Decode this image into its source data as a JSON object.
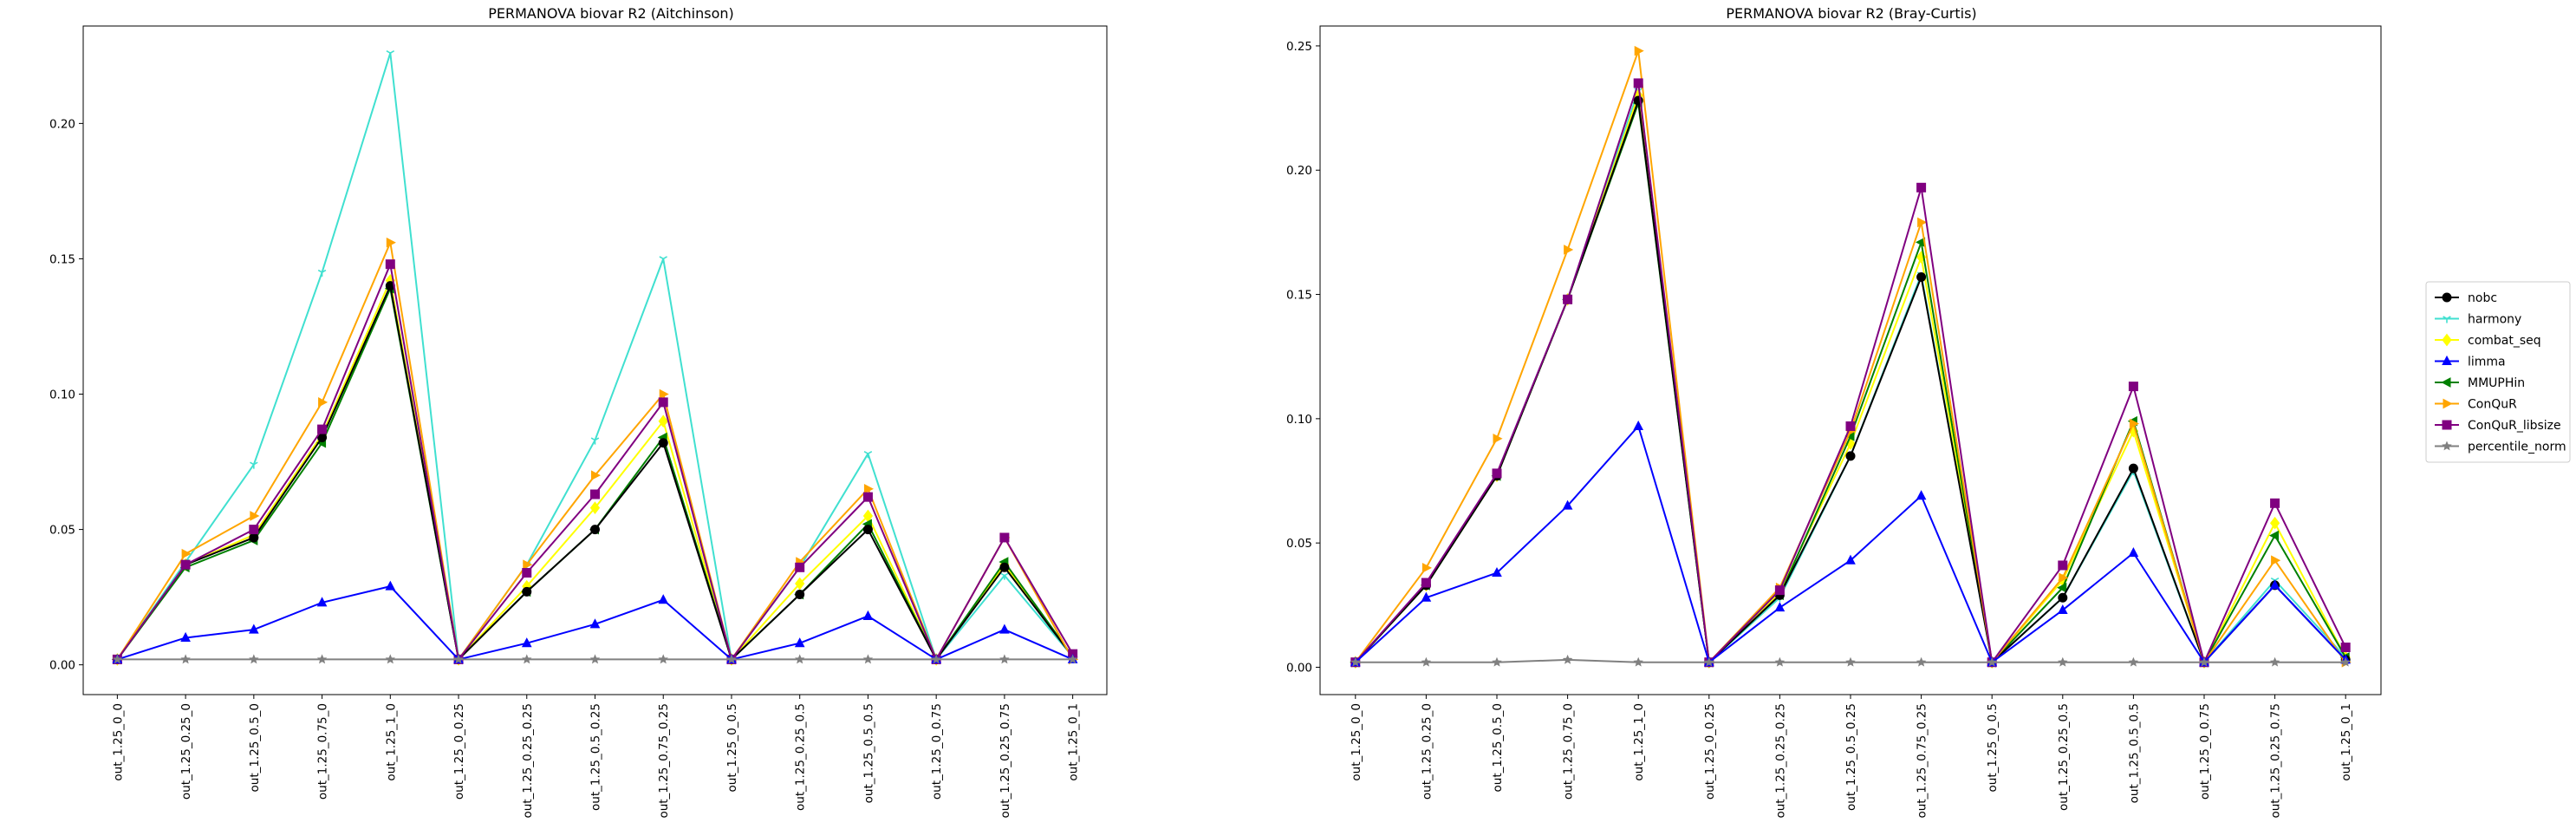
{
  "series_styles": [
    {
      "name": "nobc",
      "color": "#000000",
      "marker": "circle"
    },
    {
      "name": "harmony",
      "color": "#40e0d0",
      "marker": "tri_down"
    },
    {
      "name": "combat_seq",
      "color": "#ffff00",
      "marker": "diamond"
    },
    {
      "name": "limma",
      "color": "#0000ff",
      "marker": "triangle"
    },
    {
      "name": "MMUPHin",
      "color": "#008000",
      "marker": "tri_left"
    },
    {
      "name": "ConQuR",
      "color": "#ffa500",
      "marker": "tri_right"
    },
    {
      "name": "ConQuR_libsize",
      "color": "#800080",
      "marker": "square"
    },
    {
      "name": "percentile_norm",
      "color": "#808080",
      "marker": "star"
    }
  ],
  "chart_data": [
    {
      "type": "line",
      "title": "PERMANOVA biovar R2 (Aitchinson)",
      "categories": [
        "out_1.25_0_0",
        "out_1.25_0.25_0",
        "out_1.25_0.5_0",
        "out_1.25_0.75_0",
        "out_1.25_1_0",
        "out_1.25_0_0.25",
        "out_1.25_0.25_0.25",
        "out_1.25_0.5_0.25",
        "out_1.25_0.75_0.25",
        "out_1.25_0_0.5",
        "out_1.25_0.25_0.5",
        "out_1.25_0.5_0.5",
        "out_1.25_0_0.75",
        "out_1.25_0.25_0.75",
        "out_1.25_0_1"
      ],
      "ylim": [
        -0.011,
        0.236
      ],
      "yticks": [
        "0.00",
        "0.05",
        "0.10",
        "0.15",
        "0.20"
      ],
      "grid": false,
      "series": [
        {
          "name": "harmony",
          "values": [
            0.002,
            0.038,
            0.074,
            0.145,
            0.226,
            0.002,
            0.037,
            0.083,
            0.15,
            0.002,
            0.036,
            0.078,
            0.002,
            0.033,
            0.003
          ]
        },
        {
          "name": "combat_seq",
          "values": [
            0.002,
            0.037,
            0.048,
            0.085,
            0.142,
            0.002,
            0.029,
            0.058,
            0.09,
            0.002,
            0.03,
            0.055,
            0.002,
            0.037,
            0.003
          ]
        },
        {
          "name": "MMUPHin",
          "values": [
            0.002,
            0.036,
            0.046,
            0.082,
            0.139,
            0.002,
            0.027,
            0.05,
            0.084,
            0.002,
            0.026,
            0.052,
            0.002,
            0.038,
            0.003
          ]
        },
        {
          "name": "nobc",
          "values": [
            0.002,
            0.037,
            0.047,
            0.084,
            0.14,
            0.002,
            0.027,
            0.05,
            0.082,
            0.002,
            0.026,
            0.05,
            0.002,
            0.036,
            0.003
          ]
        },
        {
          "name": "ConQuR",
          "values": [
            0.002,
            0.041,
            0.055,
            0.097,
            0.156,
            0.002,
            0.037,
            0.07,
            0.1,
            0.002,
            0.038,
            0.065,
            0.002,
            0.047,
            0.002
          ]
        },
        {
          "name": "ConQuR_libsize",
          "values": [
            0.002,
            0.037,
            0.05,
            0.087,
            0.148,
            0.002,
            0.034,
            0.063,
            0.097,
            0.002,
            0.036,
            0.062,
            0.002,
            0.047,
            0.004
          ]
        },
        {
          "name": "limma",
          "values": [
            0.002,
            0.01,
            0.013,
            0.023,
            0.029,
            0.002,
            0.008,
            0.015,
            0.024,
            0.002,
            0.008,
            0.018,
            0.002,
            0.013,
            0.002
          ]
        },
        {
          "name": "percentile_norm",
          "values": [
            0.002,
            0.002,
            0.002,
            0.002,
            0.002,
            0.002,
            0.002,
            0.002,
            0.002,
            0.002,
            0.002,
            0.002,
            0.002,
            0.002,
            0.002
          ]
        }
      ]
    },
    {
      "type": "line",
      "title": "PERMANOVA biovar R2 (Bray-Curtis)",
      "categories": [
        "out_1.25_0_0",
        "out_1.25_0.25_0",
        "out_1.25_0.5_0",
        "out_1.25_0.75_0",
        "out_1.25_1_0",
        "out_1.25_0_0.25",
        "out_1.25_0.25_0.25",
        "out_1.25_0.5_0.25",
        "out_1.25_0.75_0.25",
        "out_1.25_0_0.5",
        "out_1.25_0.25_0.5",
        "out_1.25_0.5_0.5",
        "out_1.25_0_0.75",
        "out_1.25_0.25_0.75",
        "out_1.25_0_1"
      ],
      "ylim": [
        -0.011,
        0.258
      ],
      "yticks": [
        "0.00",
        "0.05",
        "0.10",
        "0.15",
        "0.20",
        "0.25"
      ],
      "grid": false,
      "series": [
        {
          "name": "harmony",
          "values": [
            0.002,
            0.033,
            0.077,
            0.148,
            0.232,
            0.002,
            0.028,
            0.085,
            0.158,
            0.002,
            0.028,
            0.079,
            0.002,
            0.035,
            0.004
          ]
        },
        {
          "name": "combat_seq",
          "values": [
            0.002,
            0.033,
            0.077,
            0.148,
            0.23,
            0.002,
            0.03,
            0.09,
            0.165,
            0.002,
            0.035,
            0.095,
            0.002,
            0.058,
            0.004
          ]
        },
        {
          "name": "MMUPHin",
          "values": [
            0.002,
            0.033,
            0.077,
            0.148,
            0.227,
            0.002,
            0.029,
            0.093,
            0.171,
            0.002,
            0.032,
            0.099,
            0.002,
            0.053,
            0.004
          ]
        },
        {
          "name": "nobc",
          "values": [
            0.002,
            0.033,
            0.077,
            0.148,
            0.228,
            0.002,
            0.029,
            0.085,
            0.157,
            0.002,
            0.028,
            0.08,
            0.002,
            0.033,
            0.003
          ]
        },
        {
          "name": "ConQuR",
          "values": [
            0.002,
            0.04,
            0.092,
            0.168,
            0.248,
            0.002,
            0.032,
            0.095,
            0.179,
            0.002,
            0.036,
            0.098,
            0.002,
            0.043,
            0.002
          ]
        },
        {
          "name": "ConQuR_libsize",
          "values": [
            0.002,
            0.034,
            0.078,
            0.148,
            0.235,
            0.002,
            0.031,
            0.097,
            0.193,
            0.002,
            0.041,
            0.113,
            0.002,
            0.066,
            0.008
          ]
        },
        {
          "name": "limma",
          "values": [
            0.002,
            0.028,
            0.038,
            0.065,
            0.097,
            0.002,
            0.024,
            0.043,
            0.069,
            0.002,
            0.023,
            0.046,
            0.002,
            0.033,
            0.003
          ]
        },
        {
          "name": "percentile_norm",
          "values": [
            0.002,
            0.002,
            0.002,
            0.003,
            0.002,
            0.002,
            0.002,
            0.002,
            0.002,
            0.002,
            0.002,
            0.002,
            0.002,
            0.002,
            0.002
          ]
        }
      ]
    }
  ]
}
